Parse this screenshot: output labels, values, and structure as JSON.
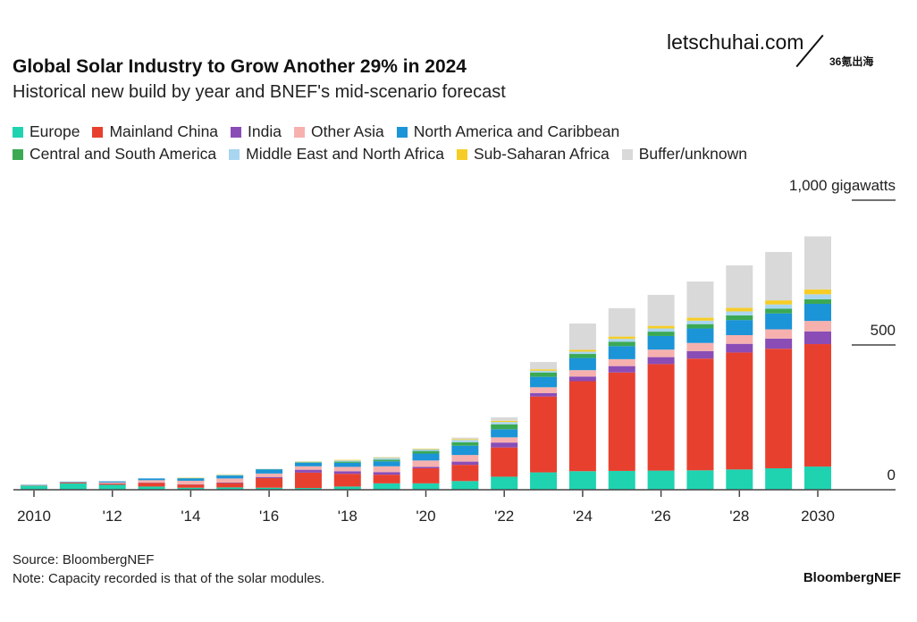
{
  "watermark": {
    "site": "letschuhai.com",
    "tag": "36氪出海"
  },
  "chart_data": {
    "type": "bar",
    "stacked": true,
    "title": "Global Solar Industry to Grow Another 29% in 2024",
    "subtitle": "Historical new build by year and BNEF's mid-scenario forecast",
    "xlabel": "",
    "ylabel": "gigawatts",
    "ylim": [
      0,
      1000
    ],
    "y_ticks": [
      {
        "value": 0,
        "label": "0"
      },
      {
        "value": 500,
        "label": "500"
      },
      {
        "value": 1000,
        "label": "1,000 gigawatts"
      }
    ],
    "categories": [
      2010,
      2011,
      2012,
      2013,
      2014,
      2015,
      2016,
      2017,
      2018,
      2019,
      2020,
      2021,
      2022,
      2023,
      2024,
      2025,
      2026,
      2027,
      2028,
      2029,
      2030
    ],
    "x_tick_labels": [
      {
        "year": 2010,
        "label": "2010"
      },
      {
        "year": 2012,
        "label": "'12"
      },
      {
        "year": 2014,
        "label": "'14"
      },
      {
        "year": 2016,
        "label": "'16"
      },
      {
        "year": 2018,
        "label": "'18"
      },
      {
        "year": 2020,
        "label": "'20"
      },
      {
        "year": 2022,
        "label": "'22"
      },
      {
        "year": 2024,
        "label": "'24"
      },
      {
        "year": 2026,
        "label": "'26"
      },
      {
        "year": 2028,
        "label": "'28"
      },
      {
        "year": 2030,
        "label": "2030"
      }
    ],
    "legend_placement": "top-left",
    "series": [
      {
        "name": "Europe",
        "color": "#1fd3b1",
        "values": [
          14,
          22,
          17,
          11,
          7,
          8,
          7,
          6,
          11,
          22,
          22,
          30,
          45,
          60,
          64,
          65,
          66,
          67,
          70,
          74,
          80
        ]
      },
      {
        "name": "Mainland China",
        "color": "#e8402f",
        "values": [
          1,
          3,
          4,
          13,
          11,
          15,
          33,
          53,
          44,
          30,
          52,
          56,
          101,
          262,
          311,
          340,
          368,
          386,
          404,
          413,
          423
        ]
      },
      {
        "name": "India",
        "color": "#8a4db6",
        "values": [
          0,
          0,
          1,
          1,
          1,
          2,
          4,
          10,
          9,
          9,
          5,
          11,
          17,
          12,
          16,
          22,
          24,
          26,
          30,
          35,
          44
        ]
      },
      {
        "name": "Other Asia",
        "color": "#f6b1ae",
        "values": [
          1,
          1,
          3,
          8,
          12,
          14,
          12,
          12,
          15,
          20,
          22,
          23,
          18,
          20,
          22,
          24,
          26,
          28,
          30,
          32,
          36
        ]
      },
      {
        "name": "North America and Caribbean",
        "color": "#1b94d8",
        "values": [
          1,
          2,
          4,
          6,
          8,
          10,
          14,
          12,
          14,
          17,
          24,
          32,
          28,
          36,
          42,
          45,
          47,
          50,
          52,
          55,
          59
        ]
      },
      {
        "name": "Central and South America",
        "color": "#3ba954",
        "values": [
          0,
          0,
          0,
          0,
          1,
          1,
          1,
          2,
          4,
          6,
          9,
          12,
          17,
          15,
          14,
          15,
          15,
          15,
          16,
          16,
          16
        ]
      },
      {
        "name": "Middle East and North Africa",
        "color": "#a8d5f0",
        "values": [
          0,
          0,
          0,
          1,
          1,
          2,
          1,
          2,
          4,
          6,
          6,
          8,
          8,
          6,
          8,
          10,
          11,
          12,
          14,
          15,
          17
        ]
      },
      {
        "name": "Sub-Saharan Africa",
        "color": "#f6cd27",
        "values": [
          0,
          0,
          0,
          0,
          1,
          1,
          0,
          1,
          2,
          2,
          2,
          3,
          4,
          5,
          6,
          8,
          9,
          10,
          12,
          14,
          17
        ]
      },
      {
        "name": "Buffer/unknown",
        "color": "#d9d9d9",
        "values": [
          1,
          0,
          1,
          0,
          0,
          0,
          0,
          0,
          0,
          1,
          0,
          5,
          12,
          25,
          91,
          98,
          107,
          125,
          147,
          167,
          183
        ]
      }
    ]
  },
  "footer": {
    "source": "Source: BloombergNEF",
    "note": "Note: Capacity recorded is that of the solar modules.",
    "brand": "BloombergNEF"
  }
}
